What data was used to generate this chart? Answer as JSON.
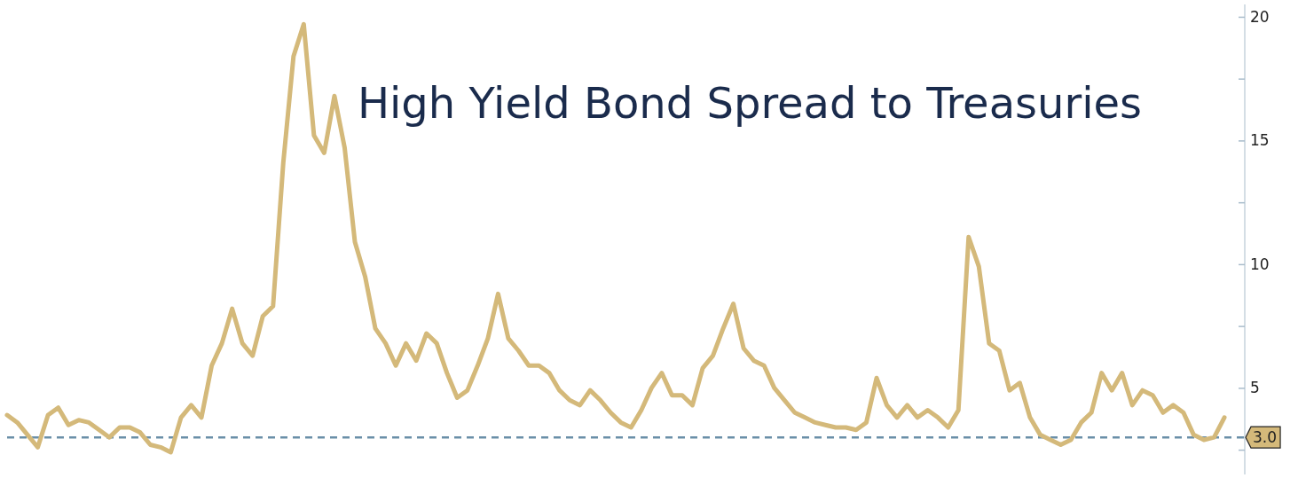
{
  "chart_data": {
    "type": "line",
    "title": "High Yield Bond Spread to Treasuries",
    "categories": [
      null,
      null,
      null,
      null,
      null,
      null,
      null,
      null,
      null,
      null,
      null,
      null,
      null,
      null,
      null,
      null,
      null,
      null,
      null,
      null,
      null,
      null,
      null,
      null,
      null,
      null,
      null,
      null,
      null,
      null,
      null,
      null,
      null,
      null,
      null,
      null,
      null,
      null,
      null,
      null,
      null,
      null,
      null,
      null,
      null,
      null,
      null,
      null,
      null,
      null,
      null,
      null,
      null,
      null,
      null,
      null,
      null,
      null,
      null,
      null,
      null,
      null,
      null,
      null,
      null,
      null,
      null,
      null,
      null,
      null,
      null,
      null,
      null,
      null,
      null,
      null,
      null,
      null,
      null,
      null,
      null,
      null,
      null,
      null,
      null,
      null,
      null,
      null,
      null,
      null,
      null,
      null,
      null,
      null,
      null,
      null,
      null,
      null,
      null,
      null,
      null,
      null,
      null,
      null,
      null,
      null,
      null,
      null,
      null,
      null,
      null,
      null,
      null,
      null,
      null,
      null,
      null,
      null,
      null,
      null
    ],
    "series": [
      {
        "color": "#d4b97a",
        "values": [
          3.9,
          3.6,
          3.1,
          2.6,
          3.9,
          4.2,
          3.5,
          3.7,
          3.6,
          3.3,
          3.0,
          3.4,
          3.4,
          3.2,
          2.7,
          2.6,
          2.4,
          3.8,
          4.3,
          3.8,
          5.9,
          6.8,
          8.2,
          6.8,
          6.3,
          7.9,
          8.3,
          14.1,
          18.4,
          19.7,
          15.2,
          14.5,
          16.8,
          14.7,
          10.9,
          9.5,
          7.4,
          6.8,
          5.9,
          6.8,
          6.1,
          7.2,
          6.8,
          5.6,
          4.6,
          4.9,
          5.9,
          7.0,
          8.8,
          7.0,
          6.5,
          5.9,
          5.9,
          5.6,
          4.9,
          4.5,
          4.3,
          4.9,
          4.5,
          4.0,
          3.6,
          3.4,
          4.1,
          5.0,
          5.6,
          4.7,
          4.7,
          4.3,
          5.8,
          6.3,
          7.4,
          8.4,
          6.6,
          6.1,
          5.9,
          5.0,
          4.5,
          4.0,
          3.8,
          3.6,
          3.5,
          3.4,
          3.4,
          3.3,
          3.6,
          5.4,
          4.3,
          3.8,
          4.3,
          3.8,
          4.1,
          3.8,
          3.4,
          4.1,
          11.1,
          9.9,
          6.8,
          6.5,
          4.9,
          5.2,
          3.8,
          3.1,
          2.9,
          2.7,
          2.9,
          3.6,
          4.0,
          5.6,
          4.9,
          5.6,
          4.3,
          4.9,
          4.7,
          4.0,
          4.3,
          4.0,
          3.1,
          2.9,
          3.0,
          3.8
        ]
      }
    ],
    "ylim": [
      1.5,
      20.5
    ],
    "yticks": [
      {
        "value": 2.5,
        "label": null
      },
      5,
      {
        "value": 7.5,
        "label": null
      },
      10,
      {
        "value": 12.5,
        "label": null
      },
      15,
      {
        "value": 17.5,
        "label": null
      },
      20
    ],
    "ref_lines": [
      {
        "axis": "y",
        "value": 3.0,
        "label": "3.0",
        "color": "#6a8fa8",
        "line_style": "dashed"
      }
    ],
    "grid": false,
    "marker": "none",
    "line_style": "solid"
  }
}
